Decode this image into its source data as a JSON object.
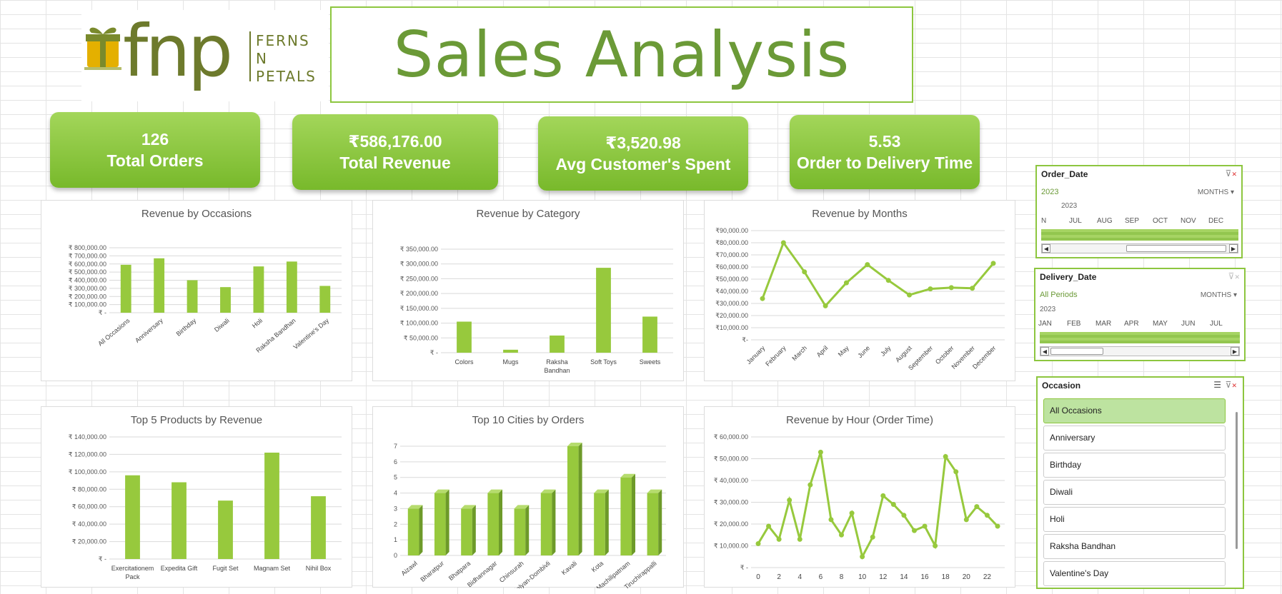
{
  "logo": {
    "text": "fnp",
    "tagline": [
      "FERNS",
      "N",
      "PETALS"
    ]
  },
  "title": "Sales Analysis",
  "kpis": [
    {
      "value": "126",
      "label": "Total Orders"
    },
    {
      "value": "₹586,176.00",
      "label": "Total Revenue"
    },
    {
      "value": "₹3,520.98",
      "label": "Avg Customer's Spent"
    },
    {
      "value": "5.53",
      "label": "Order to Delivery Time"
    }
  ],
  "colors": {
    "accent": "#8dc63f",
    "bar": "#97c93d",
    "bar_side": "#6d9a29",
    "title": "#6b9a37"
  },
  "chart_data": [
    {
      "type": "bar",
      "title": "Revenue by Occasions",
      "categories": [
        "All Occasions",
        "Anniversary",
        "Birthday",
        "Diwali",
        "Holi",
        "Raksha Bandhan",
        "Valentine's Day"
      ],
      "values": [
        590000,
        670000,
        400000,
        315000,
        570000,
        630000,
        330000
      ],
      "ylim": [
        0,
        800000
      ],
      "yticks": [
        0,
        100000,
        200000,
        300000,
        400000,
        500000,
        600000,
        700000,
        800000
      ],
      "ytick_labels": [
        "₹ -",
        "₹ 100,000.00",
        "₹ 200,000.00",
        "₹ 300,000.00",
        "₹ 400,000.00",
        "₹ 500,000.00",
        "₹ 600,000.00",
        "₹ 700,000.00",
        "₹ 800,000.00"
      ]
    },
    {
      "type": "bar",
      "title": "Revenue by Category",
      "categories": [
        "Colors",
        "Mugs",
        "Raksha Bandhan",
        "Soft Toys",
        "Sweets"
      ],
      "values": [
        105000,
        10000,
        58000,
        287000,
        122000
      ],
      "ylim": [
        0,
        350000
      ],
      "yticks": [
        0,
        50000,
        100000,
        150000,
        200000,
        250000,
        300000,
        350000
      ],
      "ytick_labels": [
        "₹ -",
        "₹ 50,000.00",
        "₹ 100,000.00",
        "₹ 150,000.00",
        "₹ 200,000.00",
        "₹ 250,000.00",
        "₹ 300,000.00",
        "₹ 350,000.00"
      ]
    },
    {
      "type": "line",
      "title": "Revenue by Months",
      "categories": [
        "January",
        "February",
        "March",
        "April",
        "May",
        "June",
        "July",
        "August",
        "September",
        "October",
        "November",
        "December"
      ],
      "values": [
        34000,
        80000,
        56000,
        28000,
        47000,
        62000,
        49000,
        37000,
        42000,
        43000,
        42500,
        63000
      ],
      "ylim": [
        0,
        90000
      ],
      "yticks": [
        0,
        10000,
        20000,
        30000,
        40000,
        50000,
        60000,
        70000,
        80000,
        90000
      ],
      "ytick_labels": [
        "₹-",
        "₹10,000.00",
        "₹20,000.00",
        "₹30,000.00",
        "₹40,000.00",
        "₹50,000.00",
        "₹60,000.00",
        "₹70,000.00",
        "₹80,000.00",
        "₹90,000.00"
      ]
    },
    {
      "type": "bar",
      "title": "Top 5 Products by Revenue",
      "categories": [
        "Exercitationem Pack",
        "Expedita Gift",
        "Fugit Set",
        "Magnam Set",
        "Nihil Box"
      ],
      "values": [
        96000,
        88000,
        67000,
        122000,
        72000
      ],
      "ylim": [
        0,
        140000
      ],
      "yticks": [
        0,
        20000,
        40000,
        60000,
        80000,
        100000,
        120000,
        140000
      ],
      "ytick_labels": [
        "₹ -",
        "₹ 20,000.00",
        "₹ 40,000.00",
        "₹ 60,000.00",
        "₹ 80,000.00",
        "₹ 100,000.00",
        "₹ 120,000.00",
        "₹ 140,000.00"
      ]
    },
    {
      "type": "bar",
      "title": "Top 10 Cities by Orders",
      "categories": [
        "Aizawl",
        "Bharatpur",
        "Bhatpara",
        "Bidhannagar",
        "Chinsurah",
        "Kalyan-Dombivli",
        "Kavali",
        "Kota",
        "Machilipatnam",
        "Tiruchirappalli"
      ],
      "values": [
        3,
        4,
        3,
        4,
        3,
        4,
        7,
        4,
        5,
        4
      ],
      "ylim": [
        0,
        7
      ],
      "yticks": [
        0,
        1,
        2,
        3,
        4,
        5,
        6,
        7
      ],
      "ytick_labels": [
        "0",
        "1",
        "2",
        "3",
        "4",
        "5",
        "6",
        "7"
      ]
    },
    {
      "type": "line",
      "title": "Revenue by Hour (Order Time)",
      "x": [
        0,
        1,
        2,
        3,
        4,
        5,
        6,
        7,
        8,
        9,
        10,
        11,
        12,
        13,
        14,
        15,
        16,
        17,
        18,
        19,
        20,
        21,
        22,
        23
      ],
      "values": [
        11000,
        19000,
        13000,
        31000,
        13000,
        38000,
        53000,
        22000,
        15000,
        25000,
        5000,
        14000,
        33000,
        29000,
        24000,
        17000,
        19000,
        10000,
        51000,
        44000,
        22000,
        28000,
        24000,
        19000
      ],
      "ylim": [
        0,
        60000
      ],
      "yticks": [
        0,
        10000,
        20000,
        30000,
        40000,
        50000,
        60000
      ],
      "ytick_labels": [
        "₹ -",
        "₹ 10,000.00",
        "₹ 20,000.00",
        "₹ 30,000.00",
        "₹ 40,000.00",
        "₹ 50,000.00",
        "₹ 60,000.00"
      ],
      "xtick_labels": [
        "0",
        "2",
        "4",
        "6",
        "8",
        "10",
        "12",
        "14",
        "16",
        "18",
        "20",
        "22"
      ]
    }
  ],
  "slicers": {
    "order_date": {
      "title": "Order_Date",
      "selection": "2023",
      "level": "MONTHS",
      "year": "2023",
      "months": [
        "N",
        "JUL",
        "AUG",
        "SEP",
        "OCT",
        "NOV",
        "DEC"
      ]
    },
    "delivery_date": {
      "title": "Delivery_Date",
      "selection": "All Periods",
      "level": "MONTHS",
      "year": "2023",
      "months": [
        "JAN",
        "FEB",
        "MAR",
        "APR",
        "MAY",
        "JUN",
        "JUL"
      ]
    },
    "occasion": {
      "title": "Occasion",
      "items": [
        "All Occasions",
        "Anniversary",
        "Birthday",
        "Diwali",
        "Holi",
        "Raksha Bandhan",
        "Valentine's Day"
      ],
      "selected": "All Occasions"
    }
  }
}
